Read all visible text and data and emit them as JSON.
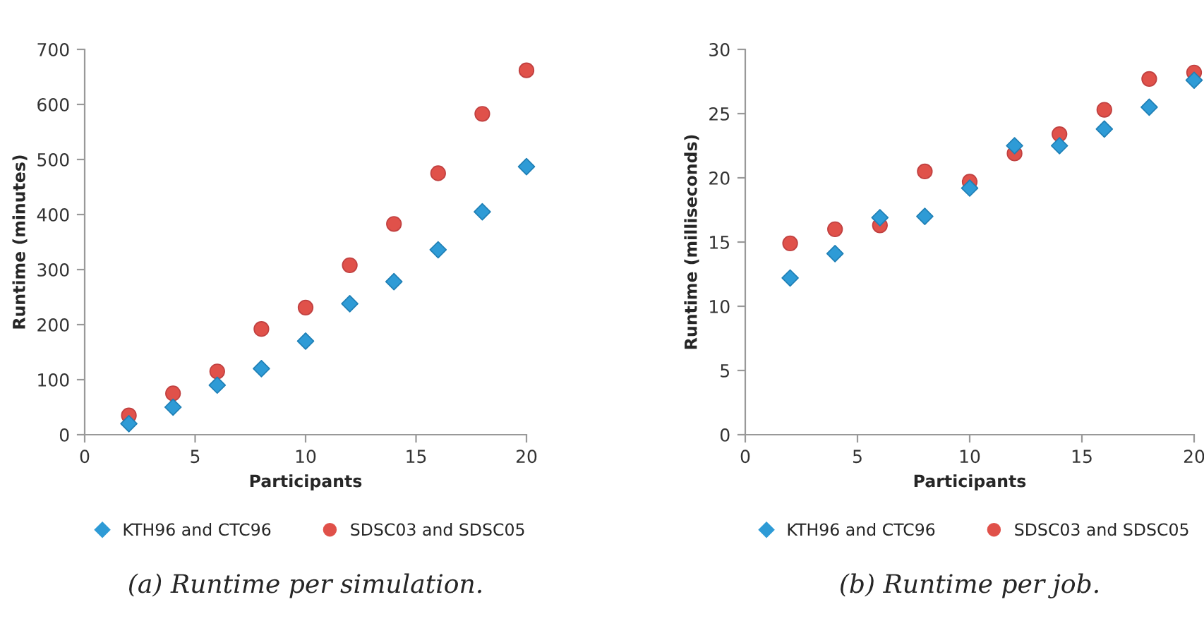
{
  "chart_data": [
    {
      "type": "scatter",
      "title": "(a) Runtime per simulation.",
      "xlabel": "Participants",
      "ylabel": "Runtime (minutes)",
      "x": [
        2,
        4,
        6,
        8,
        10,
        12,
        14,
        16,
        18,
        20
      ],
      "xlim": [
        0,
        20
      ],
      "xticks": [
        0,
        5,
        10,
        15,
        20
      ],
      "ylim": [
        0,
        700
      ],
      "yticks": [
        0,
        100,
        200,
        300,
        400,
        500,
        600,
        700
      ],
      "grid": false,
      "legend": "bottom",
      "series": [
        {
          "name": "KTH96 and CTC96",
          "color": "#2e9bd6",
          "marker": "diamond",
          "values": [
            20,
            50,
            90,
            120,
            170,
            238,
            278,
            336,
            405,
            487
          ]
        },
        {
          "name": "SDSC03 and SDSC05",
          "color": "#e0514a",
          "marker": "circle",
          "values": [
            35,
            75,
            115,
            192,
            231,
            308,
            383,
            475,
            583,
            662
          ]
        }
      ]
    },
    {
      "type": "scatter",
      "title": "(b) Runtime per job.",
      "xlabel": "Participants",
      "ylabel": "Runtime (milliseconds)",
      "x": [
        2,
        4,
        6,
        8,
        10,
        12,
        14,
        16,
        18,
        20
      ],
      "xlim": [
        0,
        20
      ],
      "xticks": [
        0,
        5,
        10,
        15,
        20
      ],
      "ylim": [
        0,
        30
      ],
      "yticks": [
        0,
        5,
        10,
        15,
        20,
        25,
        30
      ],
      "grid": false,
      "legend": "bottom",
      "series": [
        {
          "name": "KTH96 and CTC96",
          "color": "#2e9bd6",
          "marker": "diamond",
          "values": [
            12.2,
            14.1,
            16.9,
            17.0,
            19.2,
            22.5,
            22.5,
            23.8,
            25.5,
            27.6
          ]
        },
        {
          "name": "SDSC03 and SDSC05",
          "color": "#e0514a",
          "marker": "circle",
          "values": [
            14.9,
            16.0,
            16.3,
            20.5,
            19.7,
            21.9,
            23.4,
            25.3,
            27.7,
            28.2
          ]
        }
      ]
    }
  ]
}
